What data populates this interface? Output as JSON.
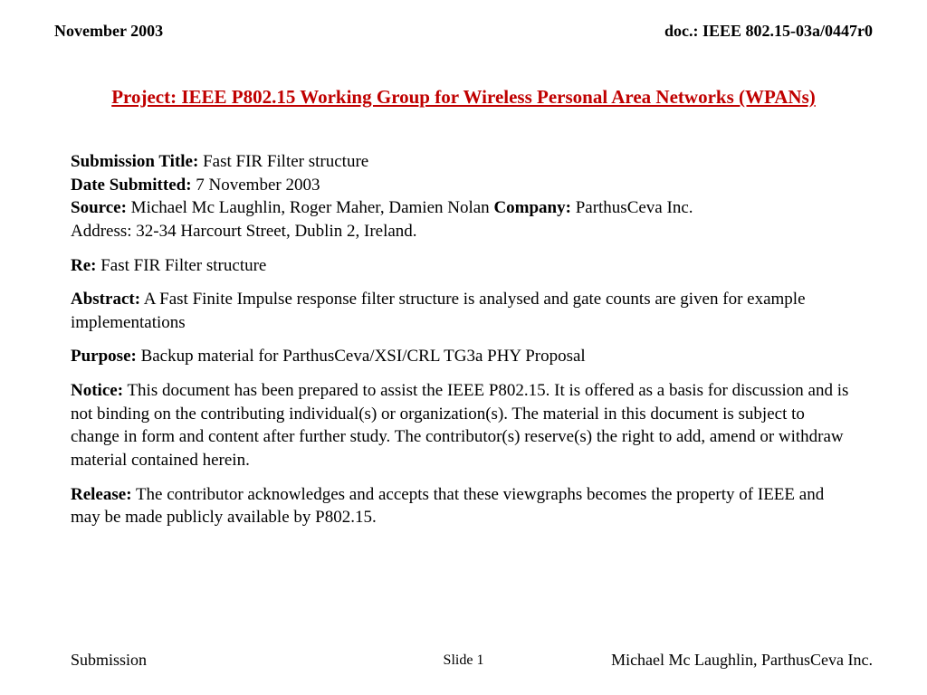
{
  "header": {
    "date": "November 2003",
    "doc_ref": "doc.: IEEE 802.15-03a/0447r0"
  },
  "title": "Project: IEEE P802.15 Working Group for Wireless Personal Area Networks (WPANs)",
  "fields": {
    "submission_title_label": "Submission Title:",
    "submission_title_value": " Fast FIR Filter structure",
    "date_submitted_label": "Date Submitted:",
    "date_submitted_value": " 7 November 2003",
    "source_label": "Source:",
    "source_value": " Michael Mc Laughlin, Roger Maher, Damien Nolan  ",
    "company_label": "Company:",
    "company_value": " ParthusCeva Inc.",
    "address_value": "Address: 32-34 Harcourt Street, Dublin 2, Ireland.",
    "re_label": "Re:",
    "re_value": " Fast FIR Filter structure",
    "abstract_label": "Abstract:",
    "abstract_value": " A Fast Finite Impulse response filter structure is analysed and gate counts are given for example implementations",
    "purpose_label": "Purpose:",
    "purpose_value": "  Backup material for ParthusCeva/XSI/CRL TG3a PHY Proposal",
    "notice_label": "Notice:",
    "notice_value": " This document has been prepared to assist the IEEE P802.15.  It is offered as a basis for discussion and is not binding on the contributing individual(s) or organization(s). The material in this document is subject to change in form and content after further study. The contributor(s) reserve(s) the right to add, amend or withdraw material contained herein.",
    "release_label": "Release:",
    "release_value": "    The contributor acknowledges and accepts that these viewgraphs becomes the property of IEEE and may be made publicly available by P802.15."
  },
  "footer": {
    "left": "Submission",
    "center": "Slide 1",
    "right": "Michael Mc Laughlin, ParthusCeva Inc."
  },
  "colors": {
    "title_color": "#c00000",
    "text_color": "#000000",
    "background": "#ffffff"
  }
}
